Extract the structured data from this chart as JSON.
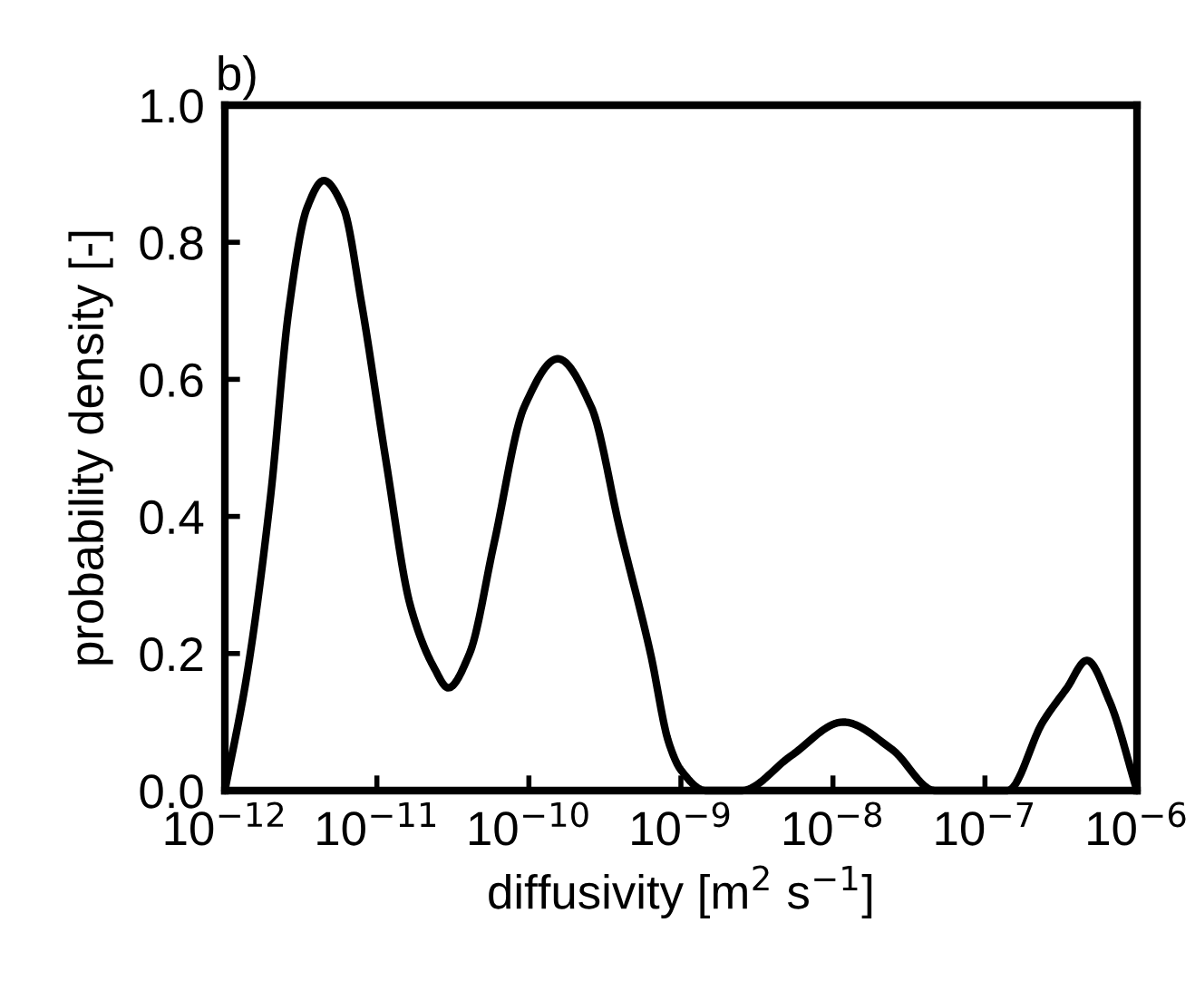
{
  "chart_data": {
    "type": "line",
    "title": "b)",
    "xlabel": "diffusivity [m$^{2}$ s$^{−1}$]",
    "ylabel": "probability density [-]",
    "log": "x",
    "series": [
      {
        "color": "#000000",
        "x": [
          1e-12,
          1.4e-12,
          2e-12,
          2.63e-12,
          3.47e-12,
          4.47e-12,
          6.03e-12,
          7.94e-12,
          1.15e-11,
          1.66e-11,
          2.37e-11,
          2.95e-11,
          4.07e-11,
          5.89e-11,
          9.33e-11,
          1.55e-10,
          2.57e-10,
          3.98e-10,
          6.31e-10,
          8.32e-10,
          1e-09,
          1.45e-09,
          2.51e-09,
          5.25e-09,
          1.17e-08,
          2.45e-08,
          4.68e-08,
          1.41e-07,
          2.4e-07,
          3.47e-07,
          4.68e-07,
          6.61e-07,
          1e-06
        ],
        "values": [
          0,
          0.17,
          0.43,
          0.7,
          0.85,
          0.89,
          0.85,
          0.71,
          0.48,
          0.27,
          0.18,
          0.15,
          0.2,
          0.36,
          0.56,
          0.63,
          0.56,
          0.38,
          0.2,
          0.07,
          0.03,
          0,
          0,
          0.05,
          0.1,
          0.06,
          0,
          0,
          0.1,
          0.15,
          0.19,
          0.13,
          0
        ]
      }
    ],
    "xlim": [
      1e-12,
      1e-06
    ],
    "ylim": [
      0,
      1.0
    ],
    "xticks": [
      {
        "value": 1e-12,
        "label": "10$^{−12}$"
      },
      {
        "value": 1e-11,
        "label": "10$^{−11}$"
      },
      {
        "value": 1e-10,
        "label": "10$^{−10}$"
      },
      {
        "value": 1e-09,
        "label": "10$^{−9}$"
      },
      {
        "value": 1e-08,
        "label": "10$^{−8}$"
      },
      {
        "value": 1e-07,
        "label": "10$^{−7}$"
      },
      {
        "value": 1e-06,
        "label": "10$^{−6}$"
      }
    ],
    "yticks": [
      {
        "value": 0,
        "label": "0.0"
      },
      {
        "value": 0.2,
        "label": "0.2"
      },
      {
        "value": 0.4,
        "label": "0.4"
      },
      {
        "value": 0.6,
        "label": "0.6"
      },
      {
        "value": 0.8,
        "label": "0.8"
      },
      {
        "value": 1.0,
        "label": "1.0"
      }
    ],
    "grid": false,
    "line_style": "solid",
    "marker": "none"
  }
}
